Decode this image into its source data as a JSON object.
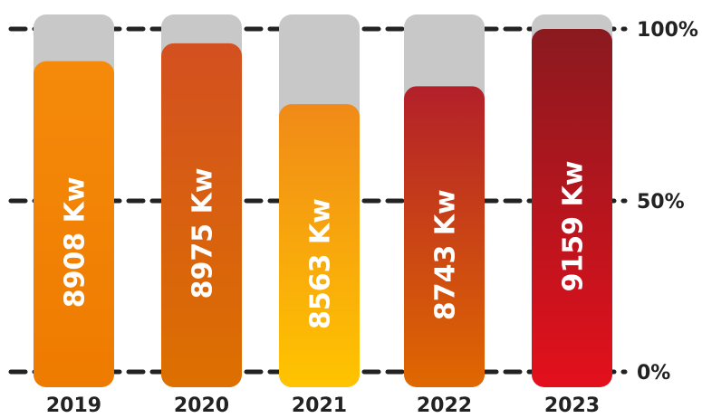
{
  "chart_data": {
    "type": "bar",
    "orientation": "vertical",
    "categories": [
      "2019",
      "2020",
      "2021",
      "2022",
      "2023"
    ],
    "values_percent": [
      91,
      96,
      79,
      84,
      100
    ],
    "data_labels": [
      "8908 Kw",
      "8975 Kw",
      "8563 Kw",
      "8743 Kw",
      "9159 Kw"
    ],
    "ylim": [
      0,
      100
    ],
    "y_ticks": [
      "0%",
      "50%",
      "100%"
    ],
    "y_axis_side": "right",
    "grid": true,
    "grid_style": "dashed",
    "background_track_color": "#c8c8c8",
    "bar_gradients": [
      [
        "#f58a0a",
        "#ee7b00"
      ],
      [
        "#d35020",
        "#dd7000"
      ],
      [
        "#f08a18",
        "#ffc400"
      ],
      [
        "#b3202a",
        "#e06800"
      ],
      [
        "#8a1a1f",
        "#e3101c"
      ]
    ],
    "label_color": "#ffffff",
    "grid_color": "#222222"
  }
}
